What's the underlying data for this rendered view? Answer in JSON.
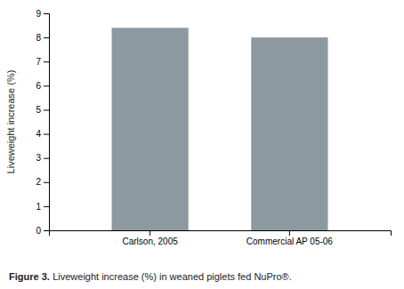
{
  "chart_data": {
    "type": "bar",
    "categories": [
      "Carlson, 2005",
      "Commercial AP 05-06"
    ],
    "values": [
      8.4,
      8.0
    ],
    "color": "#8c9aA0",
    "ylim": [
      0,
      9
    ],
    "yticks": [
      0,
      1,
      2,
      3,
      4,
      5,
      6,
      7,
      8,
      9
    ],
    "ylabel": "Liveweight increase (%)",
    "annotations": [
      "Figure 3.",
      "Liveweight increase (%) in weaned piglets fed NuPro®."
    ],
    "grid": false
  }
}
